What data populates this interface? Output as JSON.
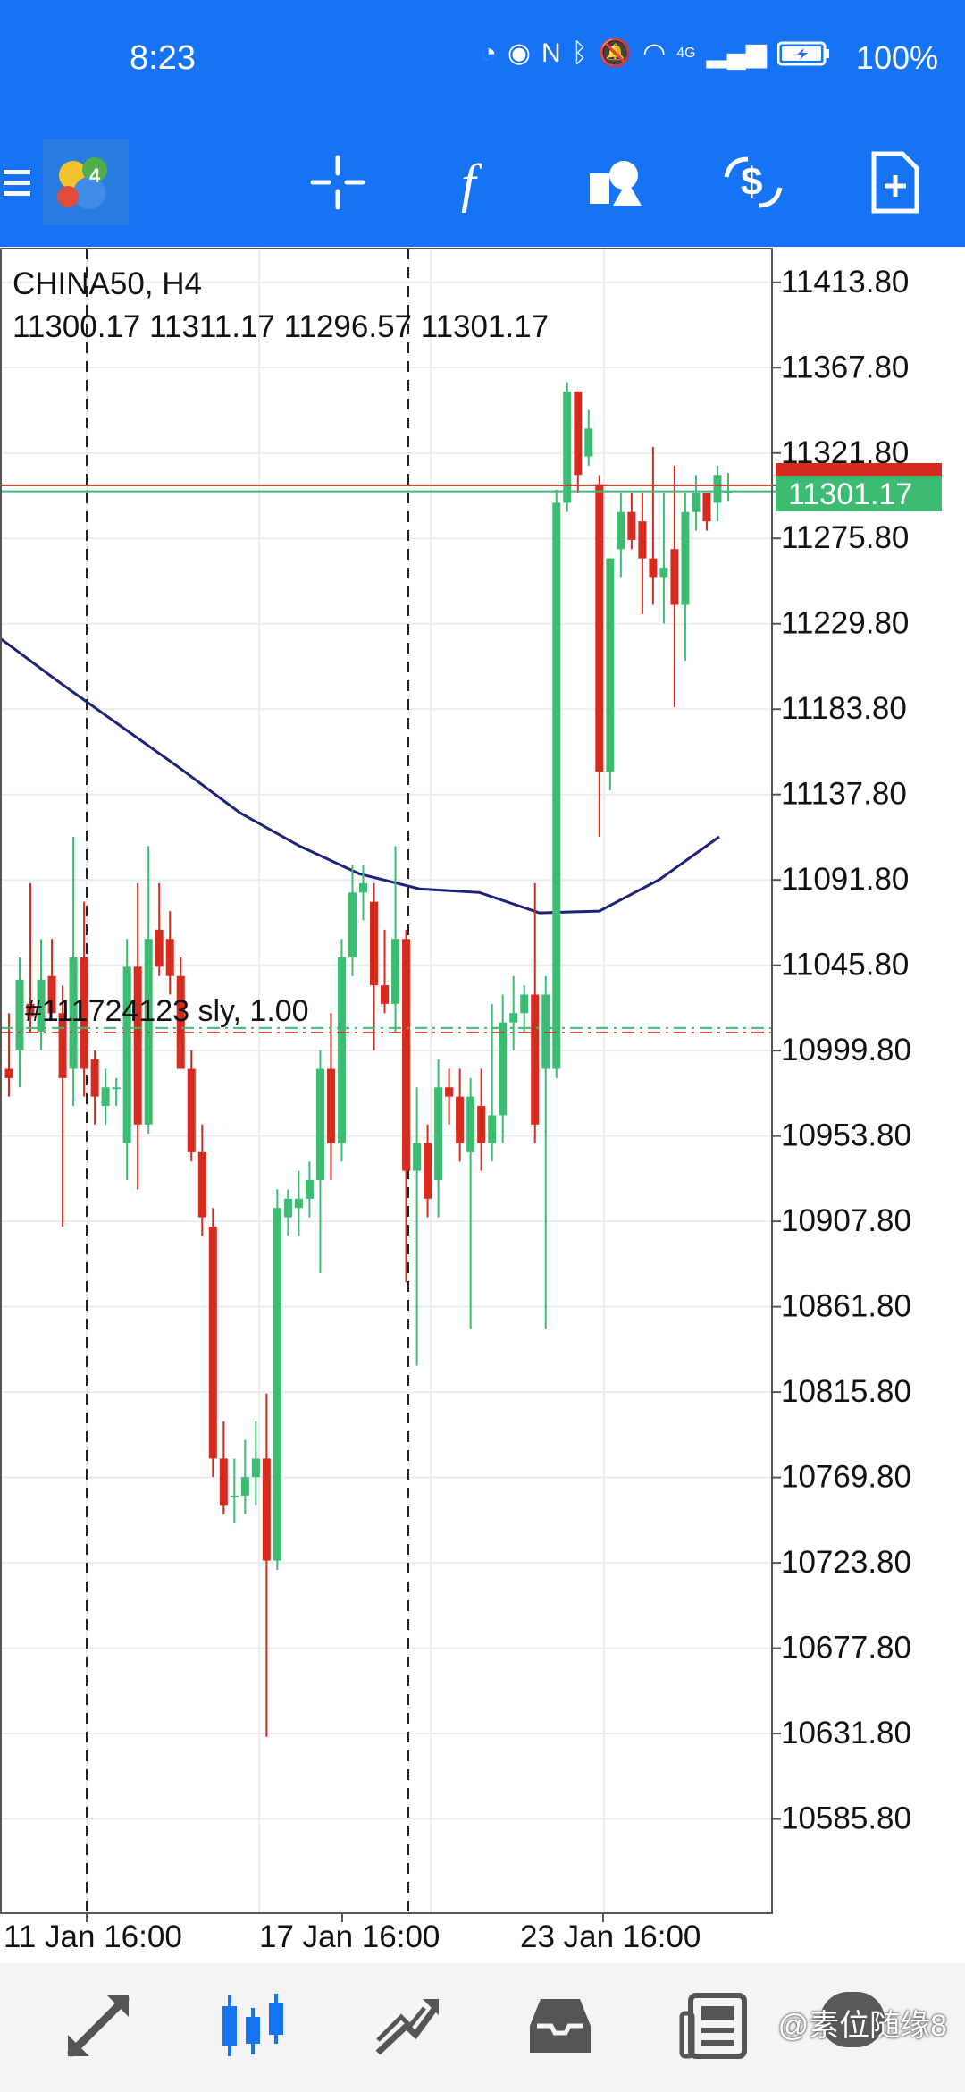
{
  "status_bar": {
    "time": "8:23",
    "network_type": "4G",
    "battery_percent": "100%"
  },
  "toolbar": {
    "icons": [
      "menu-icon",
      "metatrader-logo-icon",
      "crosshair-icon",
      "indicators-icon",
      "objects-icon",
      "trade-icon",
      "new-order-icon"
    ]
  },
  "chart": {
    "symbol_timeframe": "CHINA50, H4",
    "ohlc": "11300.17 11311.17 11296.57 11301.17",
    "position_label": "#111724123 sly, 1.00",
    "bid_price": "11301.17",
    "ask_price": "11304.37",
    "colors": {
      "bull": "#3dbb73",
      "bear": "#d62b1f",
      "ma": "#1c237a",
      "bid_line": "#3dbb73",
      "ask_line": "#b03a2e"
    }
  },
  "chart_data": {
    "type": "candlestick",
    "price_axis_labels": [
      "11413.80",
      "11367.80",
      "11321.80",
      "11275.80",
      "11229.80",
      "11183.80",
      "11137.80",
      "11091.80",
      "11045.80",
      "10999.80",
      "10953.80",
      "10907.80",
      "10861.80",
      "10815.80",
      "10769.80",
      "10723.80",
      "10677.80",
      "10631.80",
      "10585.80"
    ],
    "time_axis_labels": [
      "11 Jan 16:00",
      "17 Jan 16:00",
      "23 Jan 16:00"
    ],
    "ylim": [
      10535,
      11432
    ],
    "position_price": 11012,
    "moving_average": [
      11222,
      11198,
      11175,
      11152,
      11128,
      11110,
      11095,
      11087,
      11085,
      11074,
      11075,
      11092,
      11115
    ],
    "candles": [
      {
        "o": 10990,
        "h": 11020,
        "l": 10975,
        "c": 10985
      },
      {
        "o": 11000,
        "h": 11050,
        "l": 10980,
        "c": 11038
      },
      {
        "o": 11025,
        "h": 11090,
        "l": 11010,
        "c": 11018
      },
      {
        "o": 11010,
        "h": 11060,
        "l": 11000,
        "c": 11038
      },
      {
        "o": 11040,
        "h": 11060,
        "l": 11020,
        "c": 11020
      },
      {
        "o": 11020,
        "h": 11035,
        "l": 10905,
        "c": 10985
      },
      {
        "o": 10990,
        "h": 11115,
        "l": 10970,
        "c": 11050
      },
      {
        "o": 11050,
        "h": 11080,
        "l": 10975,
        "c": 10990
      },
      {
        "o": 10995,
        "h": 11000,
        "l": 10960,
        "c": 10975
      },
      {
        "o": 10970,
        "h": 10990,
        "l": 10960,
        "c": 10980
      },
      {
        "o": 10980,
        "h": 10985,
        "l": 10970,
        "c": 10980
      },
      {
        "o": 10950,
        "h": 11060,
        "l": 10930,
        "c": 11045
      },
      {
        "o": 11045,
        "h": 11090,
        "l": 10925,
        "c": 10960
      },
      {
        "o": 10960,
        "h": 11110,
        "l": 10955,
        "c": 11060
      },
      {
        "o": 11065,
        "h": 11090,
        "l": 11040,
        "c": 11045
      },
      {
        "o": 11060,
        "h": 11075,
        "l": 11030,
        "c": 11040
      },
      {
        "o": 11040,
        "h": 11050,
        "l": 10990,
        "c": 10990
      },
      {
        "o": 10990,
        "h": 11000,
        "l": 10940,
        "c": 10945
      },
      {
        "o": 10945,
        "h": 10960,
        "l": 10900,
        "c": 10910
      },
      {
        "o": 10905,
        "h": 10915,
        "l": 10770,
        "c": 10780
      },
      {
        "o": 10780,
        "h": 10800,
        "l": 10750,
        "c": 10755
      },
      {
        "o": 10760,
        "h": 10780,
        "l": 10745,
        "c": 10760
      },
      {
        "o": 10760,
        "h": 10790,
        "l": 10750,
        "c": 10770
      },
      {
        "o": 10770,
        "h": 10800,
        "l": 10755,
        "c": 10780
      },
      {
        "o": 10780,
        "h": 10815,
        "l": 10630,
        "c": 10725
      },
      {
        "o": 10725,
        "h": 10925,
        "l": 10720,
        "c": 10915
      },
      {
        "o": 10910,
        "h": 10925,
        "l": 10900,
        "c": 10920
      },
      {
        "o": 10915,
        "h": 10935,
        "l": 10900,
        "c": 10920
      },
      {
        "o": 10920,
        "h": 10940,
        "l": 10910,
        "c": 10930
      },
      {
        "o": 10930,
        "h": 11000,
        "l": 10880,
        "c": 10990
      },
      {
        "o": 10990,
        "h": 11020,
        "l": 10930,
        "c": 10950
      },
      {
        "o": 10950,
        "h": 11060,
        "l": 10940,
        "c": 11050
      },
      {
        "o": 11050,
        "h": 11100,
        "l": 11040,
        "c": 11085
      },
      {
        "o": 11085,
        "h": 11100,
        "l": 11070,
        "c": 11090
      },
      {
        "o": 11080,
        "h": 11090,
        "l": 11000,
        "c": 11035
      },
      {
        "o": 11035,
        "h": 11065,
        "l": 11020,
        "c": 11025
      },
      {
        "o": 11025,
        "h": 11110,
        "l": 11010,
        "c": 11060
      },
      {
        "o": 11060,
        "h": 11065,
        "l": 10875,
        "c": 10935
      },
      {
        "o": 10935,
        "h": 10980,
        "l": 10830,
        "c": 10950
      },
      {
        "o": 10950,
        "h": 10960,
        "l": 10910,
        "c": 10920
      },
      {
        "o": 10930,
        "h": 10995,
        "l": 10910,
        "c": 10980
      },
      {
        "o": 10980,
        "h": 10990,
        "l": 10960,
        "c": 10975
      },
      {
        "o": 10975,
        "h": 10990,
        "l": 10940,
        "c": 10950
      },
      {
        "o": 10945,
        "h": 10985,
        "l": 10850,
        "c": 10975
      },
      {
        "o": 10970,
        "h": 10990,
        "l": 10935,
        "c": 10950
      },
      {
        "o": 10950,
        "h": 11025,
        "l": 10940,
        "c": 10965
      },
      {
        "o": 10965,
        "h": 11030,
        "l": 10950,
        "c": 11015
      },
      {
        "o": 11015,
        "h": 11040,
        "l": 11000,
        "c": 11020
      },
      {
        "o": 11020,
        "h": 11035,
        "l": 11010,
        "c": 11030
      },
      {
        "o": 11030,
        "h": 11090,
        "l": 10950,
        "c": 10960
      },
      {
        "o": 10990,
        "h": 11040,
        "l": 10850,
        "c": 11030
      },
      {
        "o": 10990,
        "h": 11302,
        "l": 10985,
        "c": 11295
      },
      {
        "o": 11295,
        "h": 11360,
        "l": 11290,
        "c": 11355
      },
      {
        "o": 11355,
        "h": 11355,
        "l": 11300,
        "c": 11310
      },
      {
        "o": 11320,
        "h": 11345,
        "l": 11315,
        "c": 11335
      },
      {
        "o": 11305,
        "h": 11310,
        "l": 11115,
        "c": 11150
      },
      {
        "o": 11150,
        "h": 11265,
        "l": 11140,
        "c": 11265
      },
      {
        "o": 11270,
        "h": 11300,
        "l": 11255,
        "c": 11290
      },
      {
        "o": 11290,
        "h": 11300,
        "l": 11270,
        "c": 11275
      },
      {
        "o": 11285,
        "h": 11300,
        "l": 11235,
        "c": 11265
      },
      {
        "o": 11265,
        "h": 11325,
        "l": 11240,
        "c": 11255
      },
      {
        "o": 11255,
        "h": 11300,
        "l": 11230,
        "c": 11260
      },
      {
        "o": 11270,
        "h": 11315,
        "l": 11185,
        "c": 11240
      },
      {
        "o": 11240,
        "h": 11300,
        "l": 11210,
        "c": 11290
      },
      {
        "o": 11290,
        "h": 11310,
        "l": 11280,
        "c": 11300
      },
      {
        "o": 11300,
        "h": 11300,
        "l": 11280,
        "c": 11285
      },
      {
        "o": 11295,
        "h": 11315,
        "l": 11285,
        "c": 11310
      },
      {
        "o": 11300,
        "h": 11311,
        "l": 11296,
        "c": 11301
      }
    ]
  },
  "bottom_nav": {
    "icons": [
      "quotes-icon",
      "chart-icon",
      "trade-icon",
      "history-icon",
      "news-icon",
      "messages-icon"
    ]
  },
  "watermark": "@素位随缘8"
}
